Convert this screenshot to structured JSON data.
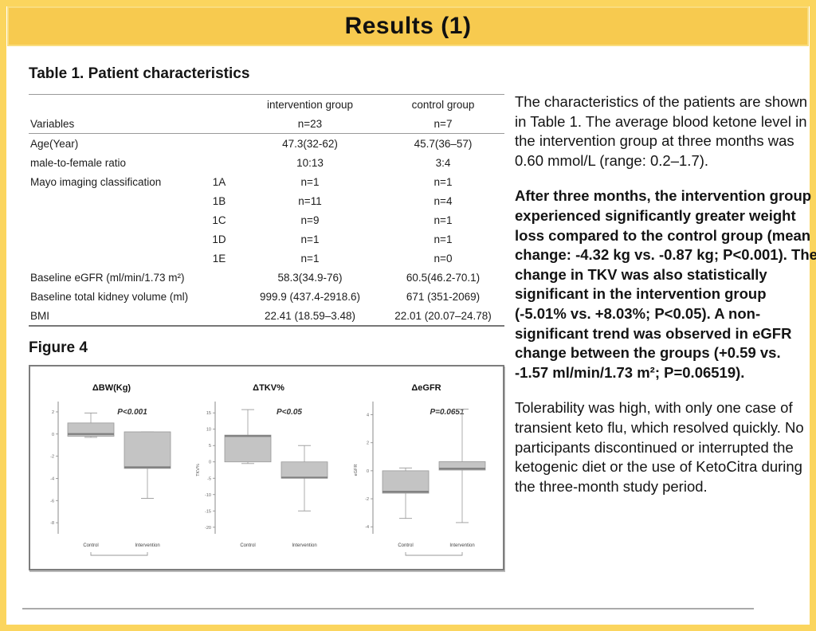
{
  "header": {
    "title": "Results (1)"
  },
  "colors": {
    "header_gold": "#F7CA4F",
    "frame_yellow": "#FBD55E",
    "box_fill": "#C4C4C4",
    "box_stroke": "#999999"
  },
  "table": {
    "caption": "Table 1. Patient characteristics",
    "group_headers": [
      "intervention group",
      "control group"
    ],
    "header_row": {
      "label": "Variables",
      "sub": "",
      "v1": "n=23",
      "v2": "n=7"
    },
    "rows": [
      {
        "label": "Age(Year)",
        "sub": "",
        "v1": "47.3(32-62)",
        "v2": "45.7(36–57)"
      },
      {
        "label": "male-to-female ratio",
        "sub": "",
        "v1": "10:13",
        "v2": "3:4"
      },
      {
        "label": "Mayo imaging classification",
        "sub": "1A",
        "v1": "n=1",
        "v2": "n=1"
      },
      {
        "label": "",
        "sub": "1B",
        "v1": "n=11",
        "v2": "n=4"
      },
      {
        "label": "",
        "sub": "1C",
        "v1": "n=9",
        "v2": "n=1"
      },
      {
        "label": "",
        "sub": "1D",
        "v1": "n=1",
        "v2": "n=1"
      },
      {
        "label": "",
        "sub": "1E",
        "v1": "n=1",
        "v2": "n=0"
      },
      {
        "label": "Baseline eGFR (ml/min/1.73 m²)",
        "sub": "",
        "v1": "58.3(34.9-76)",
        "v2": "60.5(46.2-70.1)"
      },
      {
        "label": "Baseline total kidney volume (ml)",
        "sub": "",
        "v1": "999.9 (437.4-2918.6)",
        "v2": "671 (351-2069)"
      },
      {
        "label": "BMI",
        "sub": "",
        "v1": "22.41 (18.59–3.48)",
        "v2": "22.01 (20.07–24.78)"
      }
    ]
  },
  "figure": {
    "caption": "Figure 4"
  },
  "chart_data": [
    {
      "type": "boxplot",
      "title": "ΔBW(Kg)",
      "p_label": "P<0.001",
      "ylabel": "",
      "ylim": [
        -9,
        2.5
      ],
      "yticks": [
        2,
        0,
        -2,
        -4,
        -6,
        -8
      ],
      "categories": [
        "Control",
        "Intervention"
      ],
      "series": [
        {
          "name": "Control",
          "whisker_low": -0.3,
          "q1": -0.2,
          "median": 0,
          "q3": 1.0,
          "whisker_high": 1.9
        },
        {
          "name": "Intervention",
          "whisker_low": -5.8,
          "q1": -3.1,
          "median": -3.0,
          "q3": 0.2,
          "whisker_high": 0.2
        }
      ],
      "bracket": true,
      "legend": "none",
      "grid": false
    },
    {
      "type": "boxplot",
      "title": "ΔTKV%",
      "p_label": "P<0.05",
      "ylabel": "TKV%",
      "ylim": [
        -22,
        17
      ],
      "yticks": [
        15,
        10,
        5,
        0,
        -5,
        -10,
        -15,
        -20
      ],
      "categories": [
        "Control",
        "Intervention"
      ],
      "series": [
        {
          "name": "Control",
          "whisker_low": -0.5,
          "q1": 0,
          "median": 7.9,
          "q3": 8.2,
          "whisker_high": 16
        },
        {
          "name": "Intervention",
          "whisker_low": -15,
          "q1": -5,
          "median": -4.8,
          "q3": 0,
          "whisker_high": 5
        }
      ],
      "bracket": false,
      "legend": "none",
      "grid": false
    },
    {
      "type": "boxplot",
      "title": "ΔeGFR",
      "p_label": "P=0.0651",
      "ylabel": "eGFR",
      "ylim": [
        -4.5,
        4.6
      ],
      "yticks": [
        4,
        2,
        0,
        -2,
        -4
      ],
      "categories": [
        "Control",
        "Intervention"
      ],
      "series": [
        {
          "name": "Control",
          "whisker_low": -3.4,
          "q1": -1.6,
          "median": -1.5,
          "q3": 0,
          "whisker_high": 0.2
        },
        {
          "name": "Intervention",
          "whisker_low": -3.7,
          "q1": 0.05,
          "median": 0.15,
          "q3": 0.65,
          "whisker_high": 4.4
        }
      ],
      "bracket": true,
      "legend": "none",
      "grid": false
    }
  ],
  "sidebar": {
    "p1": "The characteristics of the patients are shown in Table 1. The average blood ketone level in the intervention group at three months was 0.60 mmol/L (range: 0.2–1.7).",
    "p2": "After three months, the intervention group experienced significantly greater weight loss compared to the control group (mean change: -4.32 kg vs. -0.87 kg; P<0.001). The change in TKV was also statistically significant in the intervention group (-5.01% vs. +8.03%; P<0.05). A non-significant trend was observed in eGFR change between the groups (+0.59 vs. -1.57 ml/min/1.73 m²; P=0.06519).",
    "p3": "Tolerability was high, with only one case of transient keto flu, which resolved quickly. No participants discontinued or interrupted the ketogenic diet or the use of KetoCitra during the three-month study period."
  }
}
